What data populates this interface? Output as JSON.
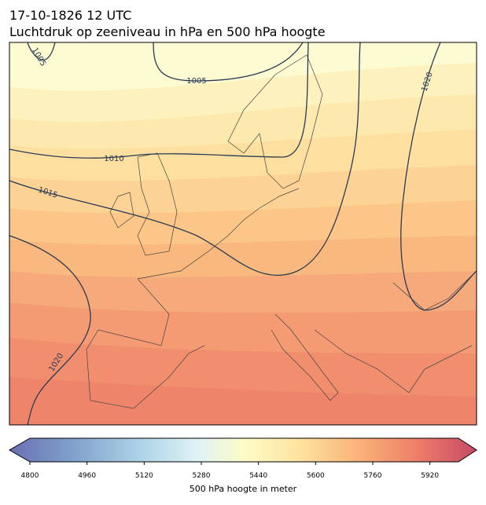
{
  "header": {
    "title_line1": "17-10-1826 12 UTC",
    "title_line2": "Luchtdruk op zeeniveau in hPa en 500 hPa hoogte"
  },
  "map": {
    "contour_labels": [
      "1005",
      "1005",
      "1010",
      "1015",
      "1020",
      "1020"
    ]
  },
  "colorbar": {
    "label": "500 hPa hoogte in meter",
    "lim": [
      4800,
      6000
    ],
    "ticks": [
      4800,
      4960,
      5120,
      5280,
      5440,
      5600,
      5760,
      5920
    ]
  }
}
